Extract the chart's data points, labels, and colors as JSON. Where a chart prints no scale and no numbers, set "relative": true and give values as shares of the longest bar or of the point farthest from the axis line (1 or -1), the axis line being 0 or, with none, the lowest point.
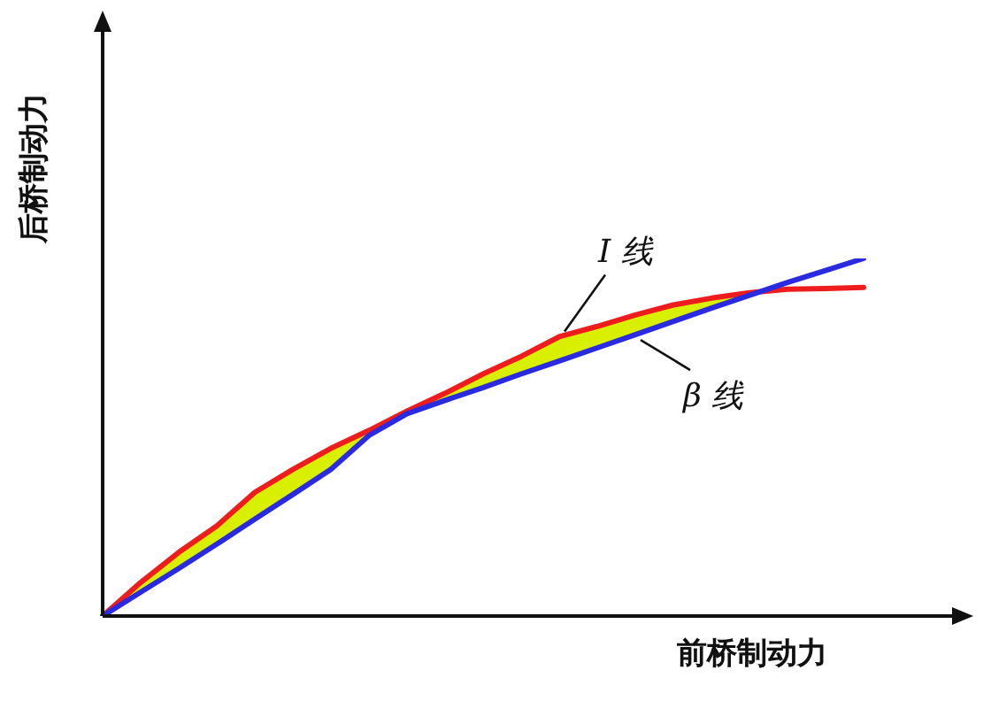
{
  "chart_data": {
    "type": "line",
    "relative": true,
    "xlabel": "前桥制动力",
    "ylabel": "后桥制动力",
    "marker": "none",
    "categories": [
      null,
      null,
      null,
      null,
      null,
      null,
      null,
      null,
      null,
      null,
      null,
      null,
      null,
      null,
      null,
      null,
      null,
      null,
      null,
      null,
      null
    ],
    "series": [
      {
        "name": "I 线",
        "color": "#ee1c1c",
        "values": [
          0,
          0.094,
          0.178,
          0.252,
          0.346,
          0.41,
          0.469,
          0.519,
          0.573,
          0.623,
          0.677,
          0.726,
          0.781,
          0.81,
          0.842,
          0.87,
          0.889,
          0.904,
          0.914,
          0.916,
          0.919
        ]
      },
      {
        "name": "β 线",
        "color": "#2a2ae0",
        "values": [
          0,
          0.067,
          0.133,
          0.201,
          0.271,
          0.34,
          0.41,
          0.505,
          0.566,
          0.603,
          0.639,
          0.677,
          0.713,
          0.75,
          0.787,
          0.824,
          0.861,
          0.897,
          0.933,
          0.966,
          1
        ]
      }
    ]
  }
}
